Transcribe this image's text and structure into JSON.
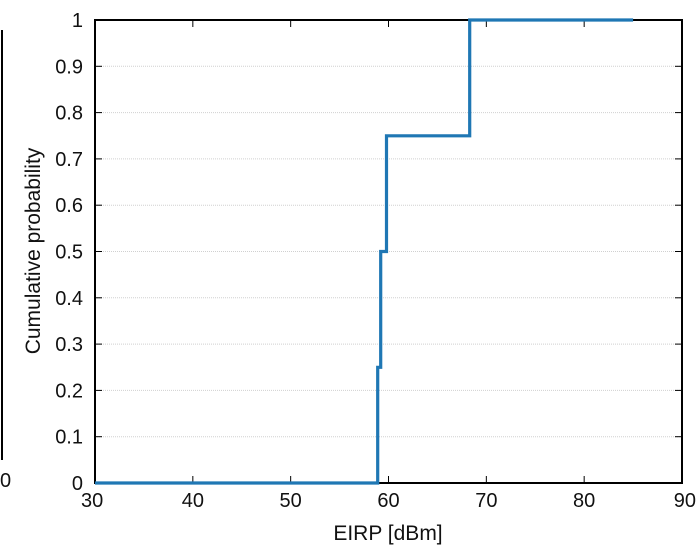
{
  "chart_data": {
    "type": "line",
    "step": true,
    "xlabel": "EIRP [dBm]",
    "ylabel": "Cumulative probability",
    "xlim": [
      30,
      90
    ],
    "ylim": [
      0,
      1
    ],
    "xticks": [
      "30",
      "40",
      "50",
      "60",
      "70",
      "80",
      "90"
    ],
    "yticks": [
      "0",
      "0.1",
      "0.2",
      "0.3",
      "0.4",
      "0.5",
      "0.6",
      "0.7",
      "0.8",
      "0.9",
      "1"
    ],
    "grid": true,
    "clipped_left_tick": "0",
    "series": [
      {
        "color": "#1f77b4",
        "x": [
          30,
          58.9,
          58.9,
          59.2,
          59.2,
          59.8,
          59.8,
          68.3,
          68.3,
          85
        ],
        "y": [
          0,
          0,
          0.25,
          0.25,
          0.5,
          0.5,
          0.75,
          0.75,
          1,
          1
        ]
      }
    ]
  }
}
